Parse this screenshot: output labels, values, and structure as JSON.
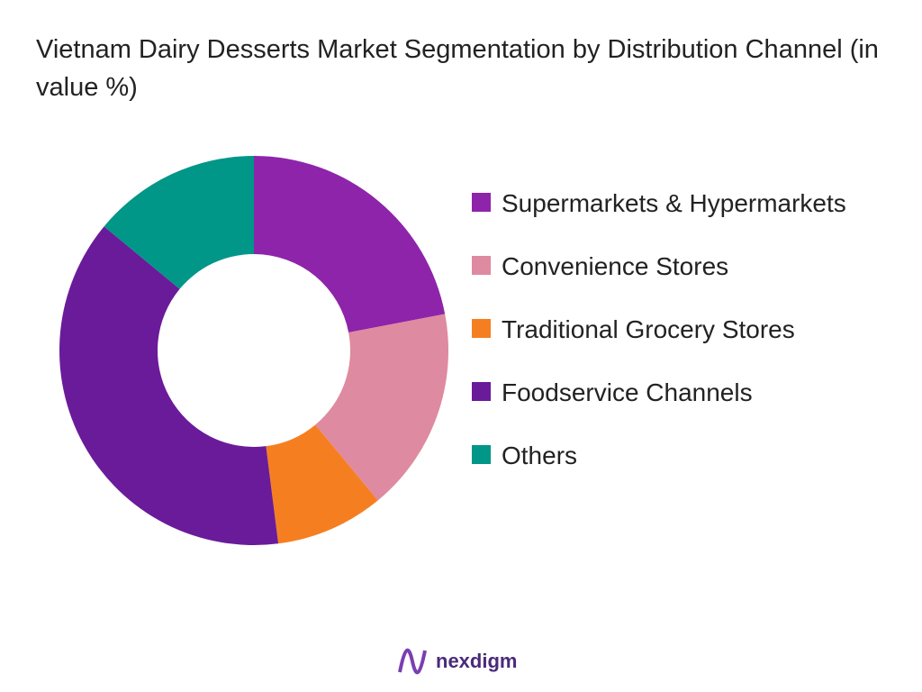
{
  "chart_data": {
    "type": "donut",
    "title": "Vietnam Dairy Desserts Market Segmentation by Distribution Channel (in value %)",
    "categories": [
      "Supermarkets & Hypermarkets",
      "Convenience Stores",
      "Traditional Grocery Stores",
      "Foodservice Channels",
      "Others"
    ],
    "values": [
      22,
      17,
      9,
      38,
      14
    ],
    "colors": [
      "#8e24aa",
      "#de8aa0",
      "#f57f20",
      "#6a1b9a",
      "#009688"
    ],
    "legend": "right"
  },
  "footer": {
    "brand": "nexdigm"
  }
}
